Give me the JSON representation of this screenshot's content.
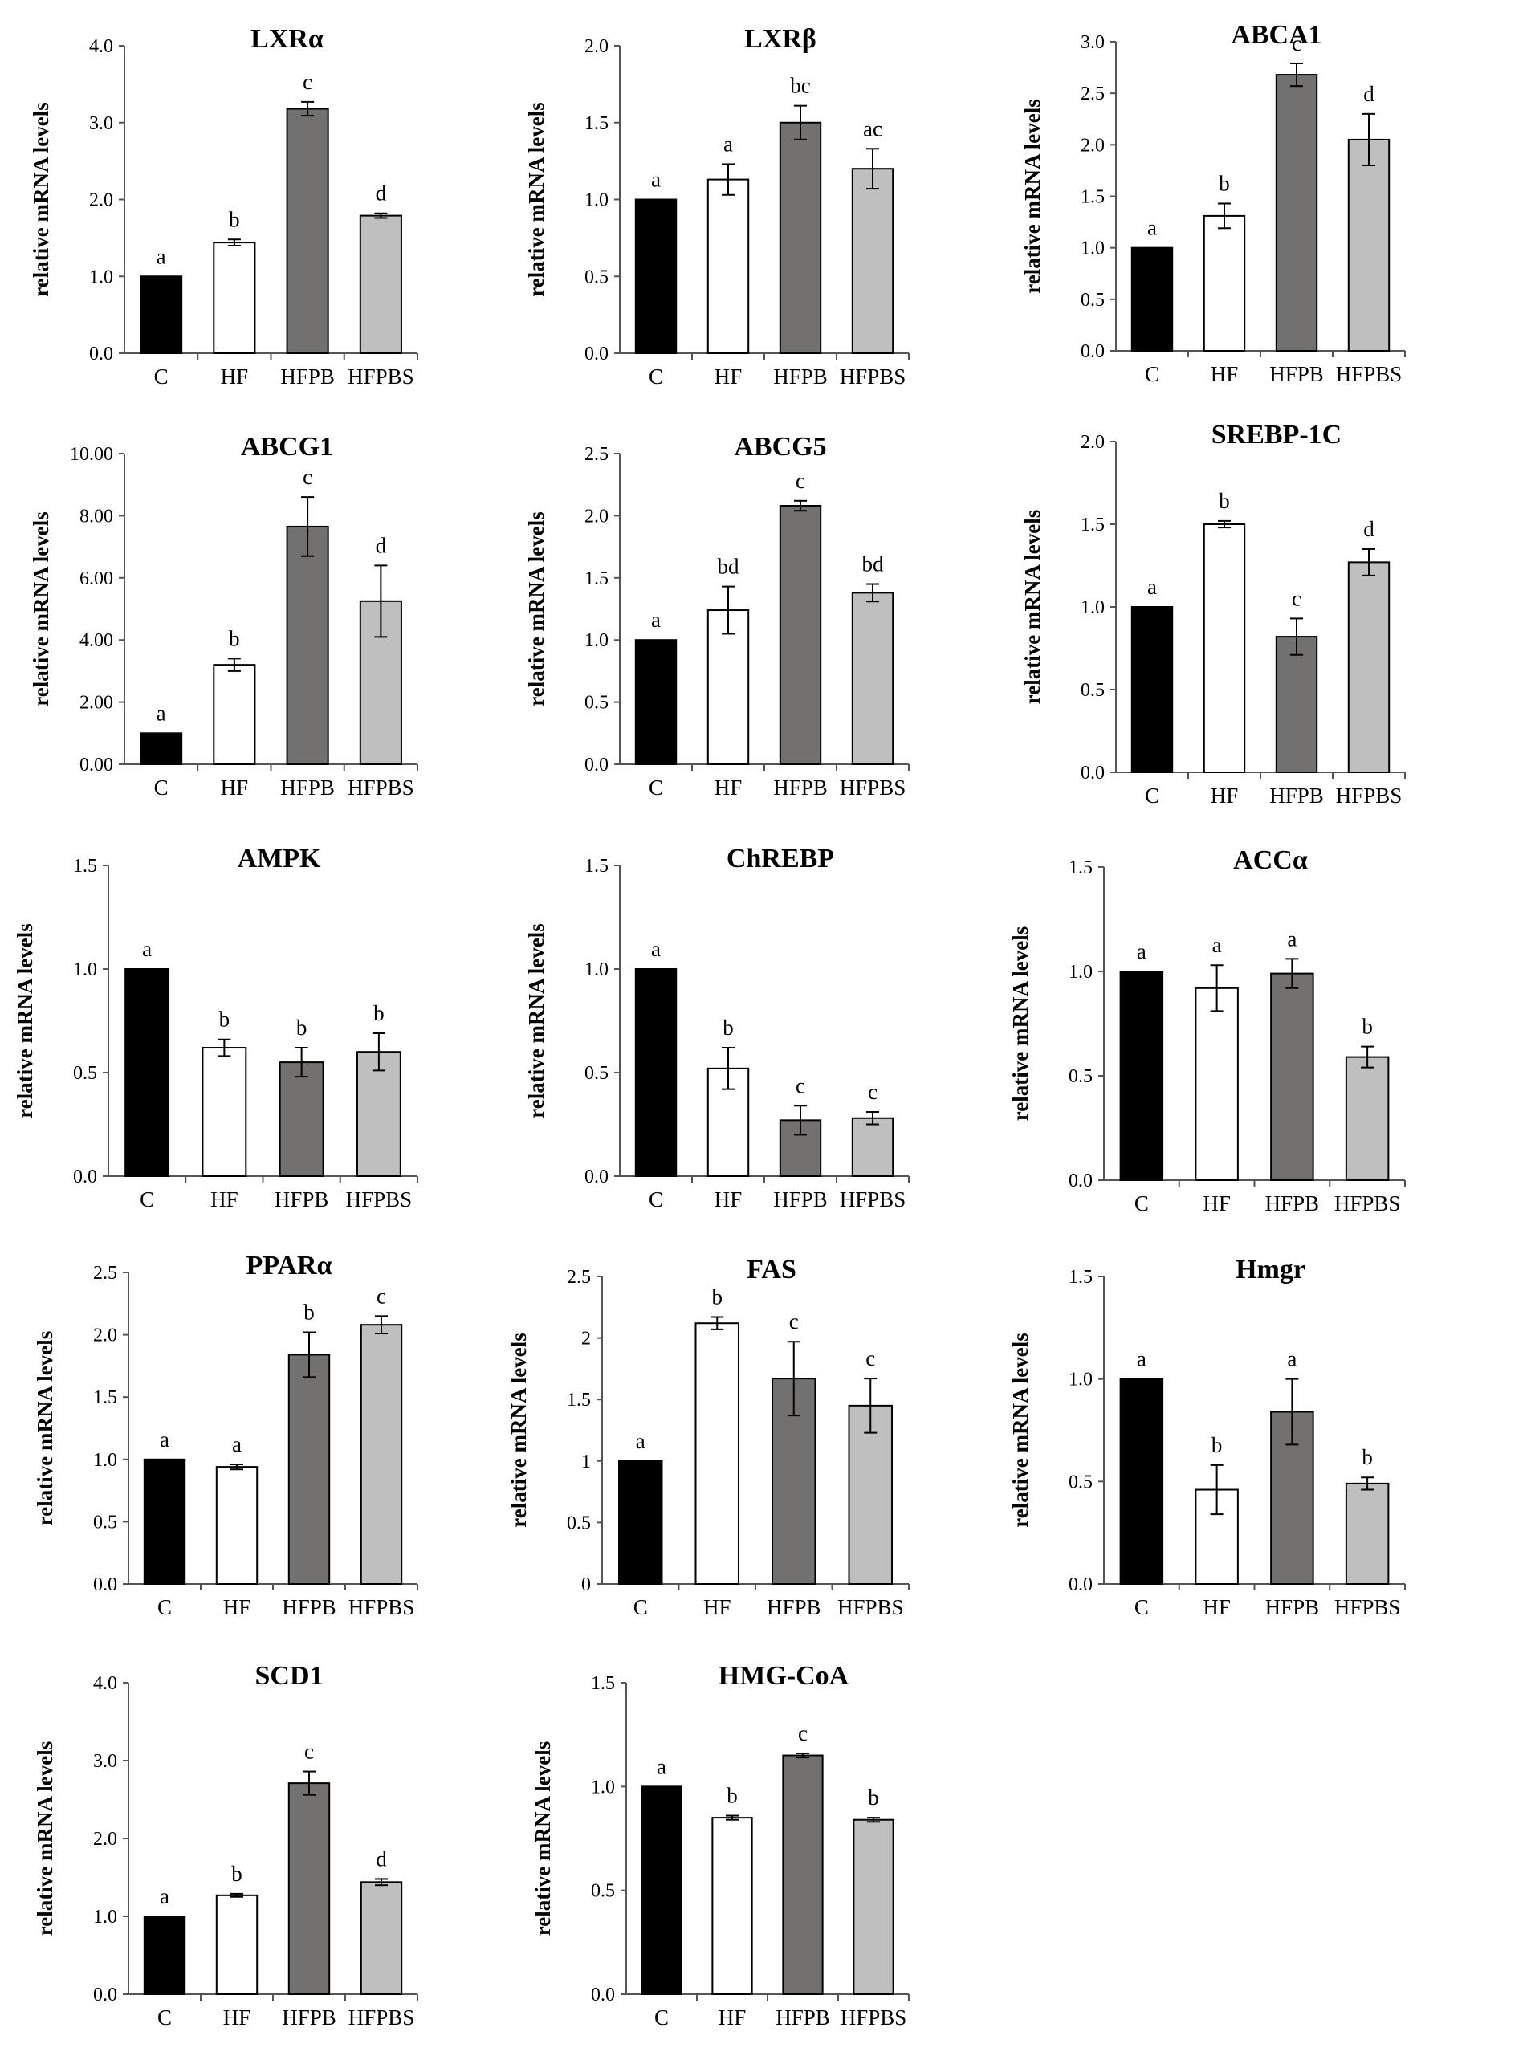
{
  "figure": {
    "ylabel": "relative mRNA levels"
  },
  "palette": {
    "C": "#000000",
    "HF": "#ffffff",
    "HFPB": "#737070",
    "HFPBS": "#bfbfbf",
    "bar_stroke": "#000000"
  },
  "chart_data": [
    {
      "type": "bar",
      "title": "LXRα",
      "ylabel": "relative mRNA levels",
      "categories": [
        "C",
        "HF",
        "HFPB",
        "HFPBS"
      ],
      "values": [
        1.0,
        1.44,
        3.18,
        1.79
      ],
      "errors": [
        0,
        0.04,
        0.09,
        0.03
      ],
      "sig": [
        "a",
        "b",
        "c",
        "d"
      ],
      "ylim": [
        0,
        4
      ],
      "ticks": [
        "0.0",
        "1.0",
        "2.0",
        "3.0",
        "4.0"
      ]
    },
    {
      "type": "bar",
      "title": "LXRβ",
      "ylabel": "relative mRNA levels",
      "categories": [
        "C",
        "HF",
        "HFPB",
        "HFPBS"
      ],
      "values": [
        1.0,
        1.13,
        1.5,
        1.2
      ],
      "errors": [
        0,
        0.1,
        0.11,
        0.13
      ],
      "sig": [
        "a",
        "a",
        "bc",
        "ac"
      ],
      "ylim": [
        0,
        2
      ],
      "ticks": [
        "0.0",
        "0.5",
        "1.0",
        "1.5",
        "2.0"
      ]
    },
    {
      "type": "bar",
      "title": "ABCA1",
      "ylabel": "relative mRNA levels",
      "categories": [
        "C",
        "HF",
        "HFPB",
        "HFPBS"
      ],
      "values": [
        1.0,
        1.31,
        2.68,
        2.05
      ],
      "errors": [
        0,
        0.12,
        0.11,
        0.25
      ],
      "sig": [
        "a",
        "b",
        "c",
        "d"
      ],
      "ylim": [
        0,
        3
      ],
      "ticks": [
        "0.0",
        "0.5",
        "1.0",
        "1.5",
        "2.0",
        "2.5",
        "3.0"
      ]
    },
    {
      "type": "bar",
      "title": "ABCG1",
      "ylabel": "relative mRNA levels",
      "categories": [
        "C",
        "HF",
        "HFPB",
        "HFPBS"
      ],
      "values": [
        1.0,
        3.2,
        7.65,
        5.25
      ],
      "errors": [
        0,
        0.2,
        0.95,
        1.15
      ],
      "sig": [
        "a",
        "b",
        "c",
        "d"
      ],
      "ylim": [
        0,
        10
      ],
      "ticks": [
        "0.00",
        "2.00",
        "4.00",
        "6.00",
        "8.00",
        "10.00"
      ]
    },
    {
      "type": "bar",
      "title": "ABCG5",
      "ylabel": "relative mRNA levels",
      "categories": [
        "C",
        "HF",
        "HFPB",
        "HFPBS"
      ],
      "values": [
        1.0,
        1.24,
        2.08,
        1.38
      ],
      "errors": [
        0,
        0.19,
        0.04,
        0.07
      ],
      "sig": [
        "a",
        "bd",
        "c",
        "bd"
      ],
      "ylim": [
        0,
        2.5
      ],
      "ticks": [
        "0.0",
        "0.5",
        "1.0",
        "1.5",
        "2.0",
        "2.5"
      ]
    },
    {
      "type": "bar",
      "title": "SREBP-1C",
      "ylabel": "relative mRNA levels",
      "categories": [
        "C",
        "HF",
        "HFPB",
        "HFPBS"
      ],
      "values": [
        1.0,
        1.5,
        0.82,
        1.27
      ],
      "errors": [
        0,
        0.02,
        0.11,
        0.08
      ],
      "sig": [
        "a",
        "b",
        "c",
        "d"
      ],
      "ylim": [
        0,
        2
      ],
      "ticks": [
        "0.0",
        "0.5",
        "1.0",
        "1.5",
        "2.0"
      ]
    },
    {
      "type": "bar",
      "title": "AMPK",
      "ylabel": "relative mRNA levels",
      "categories": [
        "C",
        "HF",
        "HFPB",
        "HFPBS"
      ],
      "values": [
        1.0,
        0.62,
        0.55,
        0.6
      ],
      "errors": [
        0,
        0.04,
        0.07,
        0.09
      ],
      "sig": [
        "a",
        "b",
        "b",
        "b"
      ],
      "ylim": [
        0,
        1.5
      ],
      "ticks": [
        "0.0",
        "0.5",
        "1.0",
        "1.5"
      ]
    },
    {
      "type": "bar",
      "title": "ChREBP",
      "ylabel": "relative mRNA levels",
      "categories": [
        "C",
        "HF",
        "HFPB",
        "HFPBS"
      ],
      "values": [
        1.0,
        0.52,
        0.27,
        0.28
      ],
      "errors": [
        0,
        0.1,
        0.07,
        0.03
      ],
      "sig": [
        "a",
        "b",
        "c",
        "c"
      ],
      "ylim": [
        0,
        1.5
      ],
      "ticks": [
        "0.0",
        "0.5",
        "1.0",
        "1.5"
      ]
    },
    {
      "type": "bar",
      "title": "ACCα",
      "ylabel": "relative mRNA levels",
      "categories": [
        "C",
        "HF",
        "HFPB",
        "HFPBS"
      ],
      "values": [
        1.0,
        0.92,
        0.99,
        0.59
      ],
      "errors": [
        0,
        0.11,
        0.07,
        0.05
      ],
      "sig": [
        "a",
        "a",
        "a",
        "b"
      ],
      "ylim": [
        0,
        1.5
      ],
      "ticks": [
        "0.0",
        "0.5",
        "1.0",
        "1.5"
      ]
    },
    {
      "type": "bar",
      "title": "PPARα",
      "ylabel": "relative mRNA levels",
      "categories": [
        "C",
        "HF",
        "HFPB",
        "HFPBS"
      ],
      "values": [
        1.0,
        0.94,
        1.84,
        2.08
      ],
      "errors": [
        0,
        0.02,
        0.18,
        0.07
      ],
      "sig": [
        "a",
        "a",
        "b",
        "c"
      ],
      "ylim": [
        0,
        2.5
      ],
      "ticks": [
        "0.0",
        "0.5",
        "1.0",
        "1.5",
        "2.0",
        "2.5"
      ]
    },
    {
      "type": "bar",
      "title": "FAS",
      "ylabel": "relative mRNA levels",
      "categories": [
        "C",
        "HF",
        "HFPB",
        "HFPBS"
      ],
      "values": [
        1.0,
        2.12,
        1.67,
        1.45
      ],
      "errors": [
        0,
        0.05,
        0.3,
        0.22
      ],
      "sig": [
        "a",
        "b",
        "c",
        "c"
      ],
      "ylim": [
        0,
        2.5
      ],
      "ticks": [
        "0",
        "0.5",
        "1",
        "1.5",
        "2",
        "2.5"
      ]
    },
    {
      "type": "bar",
      "title": "Hmgr",
      "ylabel": "relative mRNA levels",
      "categories": [
        "C",
        "HF",
        "HFPB",
        "HFPBS"
      ],
      "values": [
        1.0,
        0.46,
        0.84,
        0.49
      ],
      "errors": [
        0,
        0.12,
        0.16,
        0.03
      ],
      "sig": [
        "a",
        "b",
        "a",
        "b"
      ],
      "ylim": [
        0,
        1.5
      ],
      "ticks": [
        "0.0",
        "0.5",
        "1.0",
        "1.5"
      ]
    },
    {
      "type": "bar",
      "title": "SCD1",
      "ylabel": "relative mRNA levels",
      "categories": [
        "C",
        "HF",
        "HFPB",
        "HFPBS"
      ],
      "values": [
        1.0,
        1.27,
        2.71,
        1.44
      ],
      "errors": [
        0,
        0.02,
        0.15,
        0.04
      ],
      "sig": [
        "a",
        "b",
        "c",
        "d"
      ],
      "ylim": [
        0,
        4
      ],
      "ticks": [
        "0.0",
        "1.0",
        "2.0",
        "3.0",
        "4.0"
      ]
    },
    {
      "type": "bar",
      "title": "HMG-CoA",
      "ylabel": "relative mRNA levels",
      "categories": [
        "C",
        "HF",
        "HFPB",
        "HFPBS"
      ],
      "values": [
        1.0,
        0.85,
        1.15,
        0.84
      ],
      "errors": [
        0,
        0.01,
        0.01,
        0.01
      ],
      "sig": [
        "a",
        "b",
        "c",
        "b"
      ],
      "ylim": [
        0,
        1.5
      ],
      "ticks": [
        "0.0",
        "0.5",
        "1.0",
        "1.5"
      ]
    }
  ]
}
